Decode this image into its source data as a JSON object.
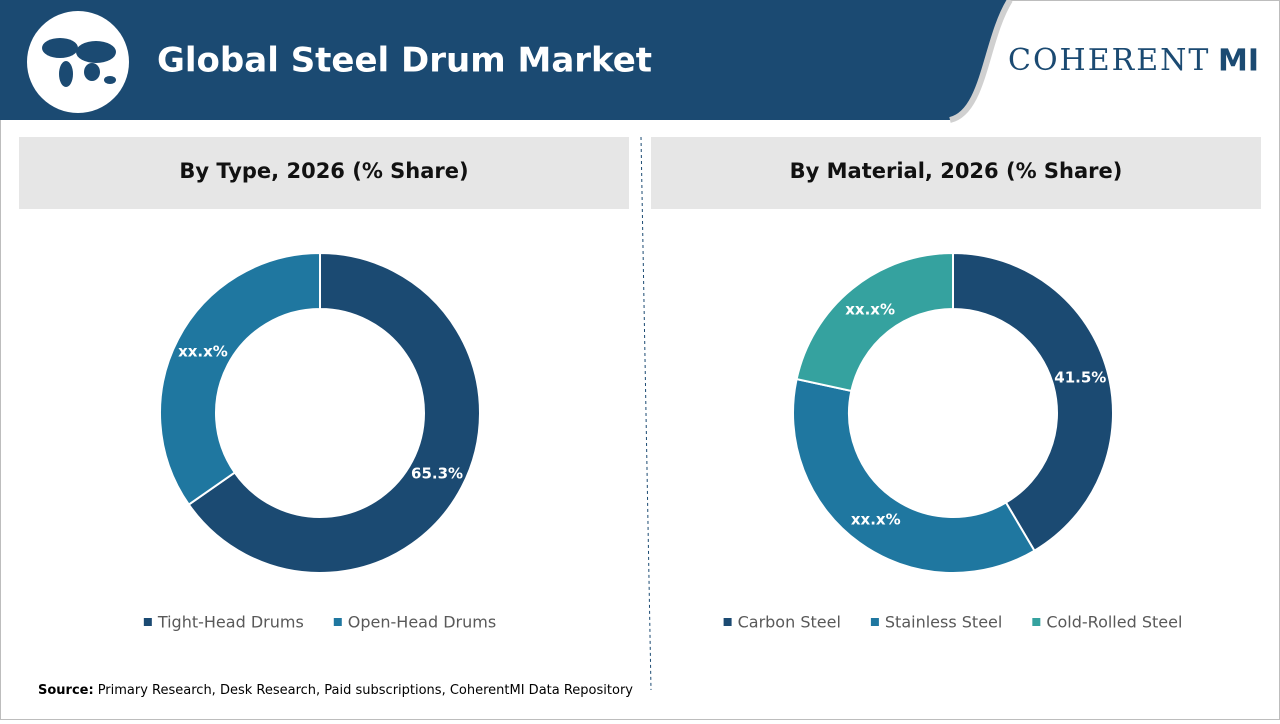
{
  "header": {
    "title": "Global Steel Drum Market",
    "logo_main": "COHERENT",
    "logo_accent": "MI"
  },
  "source": {
    "label": "Source:",
    "text": "Primary Research, Desk Research, Paid subscriptions, CoherentMI Data Repository"
  },
  "chart_data": [
    {
      "type": "donut",
      "title": "By Type, 2026 (% Share)",
      "categories": [
        "Tight-Head Drums",
        "Open-Head Drums"
      ],
      "values": [
        65.3,
        34.7
      ],
      "value_labels": [
        "65.3%",
        "xx.x%"
      ],
      "colors": [
        "#1b4a72",
        "#1f77a0"
      ]
    },
    {
      "type": "donut",
      "title": "By Material, 2026 (% Share)",
      "categories": [
        "Carbon Steel",
        "Stainless Steel",
        "Cold-Rolled Steel"
      ],
      "values": [
        41.5,
        36.9,
        21.6
      ],
      "value_labels": [
        "41.5%",
        "xx.x%",
        "xx.x%"
      ],
      "colors": [
        "#1b4a72",
        "#1f77a0",
        "#35a29f"
      ]
    }
  ]
}
